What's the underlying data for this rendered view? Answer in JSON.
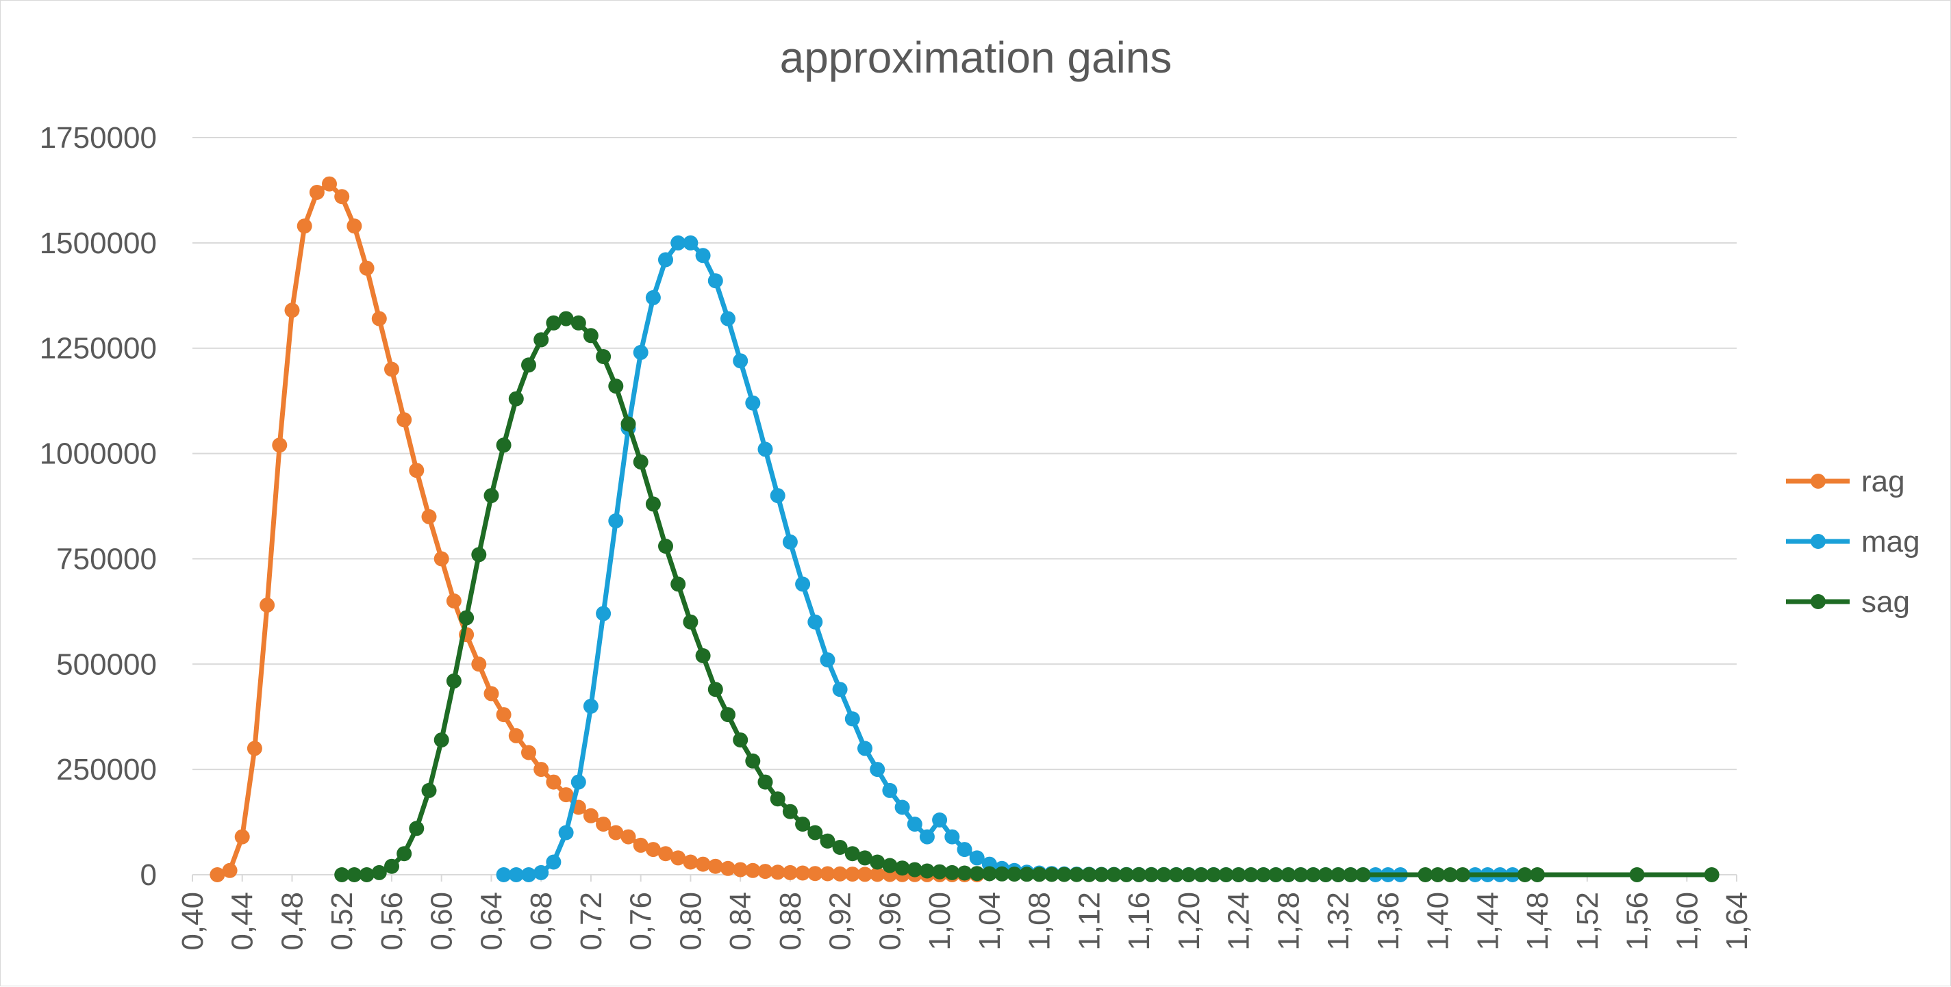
{
  "chart_data": {
    "type": "line",
    "title": "approximation gains",
    "xlabel": "",
    "ylabel": "",
    "xlim": [
      0.4,
      1.64
    ],
    "ylim": [
      0,
      1750000
    ],
    "x_ticks": [
      "0,40",
      "0,44",
      "0,48",
      "0,52",
      "0,56",
      "0,60",
      "0,64",
      "0,68",
      "0,72",
      "0,76",
      "0,80",
      "0,84",
      "0,88",
      "0,92",
      "0,96",
      "1,00",
      "1,04",
      "1,08",
      "1,12",
      "1,16",
      "1,20",
      "1,24",
      "1,28",
      "1,32",
      "1,36",
      "1,40",
      "1,44",
      "1,48",
      "1,52",
      "1,56",
      "1,60",
      "1,64"
    ],
    "y_ticks": [
      "0",
      "250000",
      "500000",
      "750000",
      "1000000",
      "1250000",
      "1500000",
      "1750000"
    ],
    "grid": "horizontal",
    "legend_position": "right",
    "series": [
      {
        "name": "rag",
        "color": "#ED7D31",
        "points": [
          [
            0.42,
            0
          ],
          [
            0.43,
            10000
          ],
          [
            0.44,
            90000
          ],
          [
            0.45,
            300000
          ],
          [
            0.46,
            640000
          ],
          [
            0.47,
            1020000
          ],
          [
            0.48,
            1340000
          ],
          [
            0.49,
            1540000
          ],
          [
            0.5,
            1620000
          ],
          [
            0.51,
            1640000
          ],
          [
            0.52,
            1610000
          ],
          [
            0.53,
            1540000
          ],
          [
            0.54,
            1440000
          ],
          [
            0.55,
            1320000
          ],
          [
            0.56,
            1200000
          ],
          [
            0.57,
            1080000
          ],
          [
            0.58,
            960000
          ],
          [
            0.59,
            850000
          ],
          [
            0.6,
            750000
          ],
          [
            0.61,
            650000
          ],
          [
            0.62,
            570000
          ],
          [
            0.63,
            500000
          ],
          [
            0.64,
            430000
          ],
          [
            0.65,
            380000
          ],
          [
            0.66,
            330000
          ],
          [
            0.67,
            290000
          ],
          [
            0.68,
            250000
          ],
          [
            0.69,
            220000
          ],
          [
            0.7,
            190000
          ],
          [
            0.71,
            160000
          ],
          [
            0.72,
            140000
          ],
          [
            0.73,
            120000
          ],
          [
            0.74,
            100000
          ],
          [
            0.75,
            90000
          ],
          [
            0.76,
            70000
          ],
          [
            0.77,
            60000
          ],
          [
            0.78,
            50000
          ],
          [
            0.79,
            40000
          ],
          [
            0.8,
            30000
          ],
          [
            0.81,
            25000
          ],
          [
            0.82,
            20000
          ],
          [
            0.83,
            15000
          ],
          [
            0.84,
            12000
          ],
          [
            0.85,
            10000
          ],
          [
            0.86,
            8000
          ],
          [
            0.87,
            6000
          ],
          [
            0.88,
            5000
          ],
          [
            0.89,
            4000
          ],
          [
            0.9,
            3000
          ],
          [
            0.91,
            2500
          ],
          [
            0.92,
            2000
          ],
          [
            0.93,
            1500
          ],
          [
            0.94,
            1000
          ],
          [
            0.95,
            800
          ],
          [
            0.96,
            600
          ],
          [
            0.97,
            400
          ],
          [
            0.98,
            300
          ],
          [
            0.99,
            200
          ],
          [
            1.0,
            150
          ],
          [
            1.01,
            100
          ],
          [
            1.02,
            50
          ],
          [
            1.03,
            30
          ]
        ]
      },
      {
        "name": "mag",
        "color": "#1AA0D8",
        "points": [
          [
            0.65,
            0
          ],
          [
            0.66,
            0
          ],
          [
            0.67,
            0
          ],
          [
            0.68,
            5000
          ],
          [
            0.69,
            30000
          ],
          [
            0.7,
            100000
          ],
          [
            0.71,
            220000
          ],
          [
            0.72,
            400000
          ],
          [
            0.73,
            620000
          ],
          [
            0.74,
            840000
          ],
          [
            0.75,
            1060000
          ],
          [
            0.76,
            1240000
          ],
          [
            0.77,
            1370000
          ],
          [
            0.78,
            1460000
          ],
          [
            0.79,
            1500000
          ],
          [
            0.8,
            1500000
          ],
          [
            0.81,
            1470000
          ],
          [
            0.82,
            1410000
          ],
          [
            0.83,
            1320000
          ],
          [
            0.84,
            1220000
          ],
          [
            0.85,
            1120000
          ],
          [
            0.86,
            1010000
          ],
          [
            0.87,
            900000
          ],
          [
            0.88,
            790000
          ],
          [
            0.89,
            690000
          ],
          [
            0.9,
            600000
          ],
          [
            0.91,
            510000
          ],
          [
            0.92,
            440000
          ],
          [
            0.93,
            370000
          ],
          [
            0.94,
            300000
          ],
          [
            0.95,
            250000
          ],
          [
            0.96,
            200000
          ],
          [
            0.97,
            160000
          ],
          [
            0.98,
            120000
          ],
          [
            0.99,
            90000
          ],
          [
            1.0,
            130000
          ],
          [
            1.01,
            90000
          ],
          [
            1.02,
            60000
          ],
          [
            1.03,
            40000
          ],
          [
            1.04,
            25000
          ],
          [
            1.05,
            15000
          ],
          [
            1.06,
            10000
          ],
          [
            1.07,
            6000
          ],
          [
            1.08,
            4000
          ],
          [
            1.09,
            3000
          ],
          [
            1.1,
            2000
          ],
          [
            1.11,
            1500
          ],
          [
            1.12,
            1000
          ],
          [
            1.13,
            800
          ],
          [
            1.14,
            600
          ],
          [
            1.15,
            500
          ],
          [
            1.16,
            400
          ],
          [
            1.17,
            300
          ],
          [
            1.18,
            250
          ],
          [
            1.19,
            200
          ],
          [
            1.2,
            150
          ],
          [
            1.21,
            120
          ],
          [
            1.22,
            100
          ],
          [
            1.23,
            80
          ],
          [
            1.24,
            60
          ],
          [
            1.25,
            50
          ],
          [
            1.26,
            40
          ],
          [
            1.27,
            30
          ],
          [
            1.28,
            25
          ],
          [
            1.29,
            20
          ],
          [
            1.3,
            15
          ],
          [
            1.31,
            12
          ],
          [
            1.32,
            10
          ],
          [
            1.33,
            8
          ],
          [
            1.34,
            6
          ],
          [
            1.35,
            5
          ],
          [
            1.36,
            4
          ],
          [
            1.37,
            3
          ],
          [
            1.43,
            2
          ],
          [
            1.44,
            2
          ],
          [
            1.45,
            1
          ],
          [
            1.46,
            1
          ]
        ]
      },
      {
        "name": "sag",
        "color": "#1E6B24",
        "points": [
          [
            0.52,
            0
          ],
          [
            0.53,
            0
          ],
          [
            0.54,
            0
          ],
          [
            0.55,
            5000
          ],
          [
            0.56,
            20000
          ],
          [
            0.57,
            50000
          ],
          [
            0.58,
            110000
          ],
          [
            0.59,
            200000
          ],
          [
            0.6,
            320000
          ],
          [
            0.61,
            460000
          ],
          [
            0.62,
            610000
          ],
          [
            0.63,
            760000
          ],
          [
            0.64,
            900000
          ],
          [
            0.65,
            1020000
          ],
          [
            0.66,
            1130000
          ],
          [
            0.67,
            1210000
          ],
          [
            0.68,
            1270000
          ],
          [
            0.69,
            1310000
          ],
          [
            0.7,
            1320000
          ],
          [
            0.71,
            1310000
          ],
          [
            0.72,
            1280000
          ],
          [
            0.73,
            1230000
          ],
          [
            0.74,
            1160000
          ],
          [
            0.75,
            1070000
          ],
          [
            0.76,
            980000
          ],
          [
            0.77,
            880000
          ],
          [
            0.78,
            780000
          ],
          [
            0.79,
            690000
          ],
          [
            0.8,
            600000
          ],
          [
            0.81,
            520000
          ],
          [
            0.82,
            440000
          ],
          [
            0.83,
            380000
          ],
          [
            0.84,
            320000
          ],
          [
            0.85,
            270000
          ],
          [
            0.86,
            220000
          ],
          [
            0.87,
            180000
          ],
          [
            0.88,
            150000
          ],
          [
            0.89,
            120000
          ],
          [
            0.9,
            100000
          ],
          [
            0.91,
            80000
          ],
          [
            0.92,
            65000
          ],
          [
            0.93,
            50000
          ],
          [
            0.94,
            40000
          ],
          [
            0.95,
            30000
          ],
          [
            0.96,
            22000
          ],
          [
            0.97,
            16000
          ],
          [
            0.98,
            12000
          ],
          [
            0.99,
            9000
          ],
          [
            1.0,
            7000
          ],
          [
            1.01,
            5000
          ],
          [
            1.02,
            4000
          ],
          [
            1.03,
            3000
          ],
          [
            1.04,
            2500
          ],
          [
            1.05,
            2000
          ],
          [
            1.06,
            1500
          ],
          [
            1.07,
            1200
          ],
          [
            1.08,
            1000
          ],
          [
            1.09,
            800
          ],
          [
            1.1,
            600
          ],
          [
            1.11,
            500
          ],
          [
            1.12,
            400
          ],
          [
            1.13,
            300
          ],
          [
            1.14,
            250
          ],
          [
            1.15,
            200
          ],
          [
            1.16,
            150
          ],
          [
            1.17,
            120
          ],
          [
            1.18,
            100
          ],
          [
            1.19,
            80
          ],
          [
            1.2,
            60
          ],
          [
            1.21,
            50
          ],
          [
            1.22,
            40
          ],
          [
            1.23,
            30
          ],
          [
            1.24,
            25
          ],
          [
            1.25,
            20
          ],
          [
            1.26,
            15
          ],
          [
            1.27,
            12
          ],
          [
            1.28,
            10
          ],
          [
            1.29,
            8
          ],
          [
            1.3,
            6
          ],
          [
            1.31,
            5
          ],
          [
            1.32,
            4
          ],
          [
            1.33,
            3
          ],
          [
            1.34,
            2
          ],
          [
            1.39,
            2
          ],
          [
            1.4,
            1
          ],
          [
            1.41,
            1
          ],
          [
            1.42,
            1
          ],
          [
            1.47,
            1
          ],
          [
            1.48,
            1
          ],
          [
            1.56,
            1
          ],
          [
            1.62,
            1
          ]
        ]
      }
    ]
  }
}
